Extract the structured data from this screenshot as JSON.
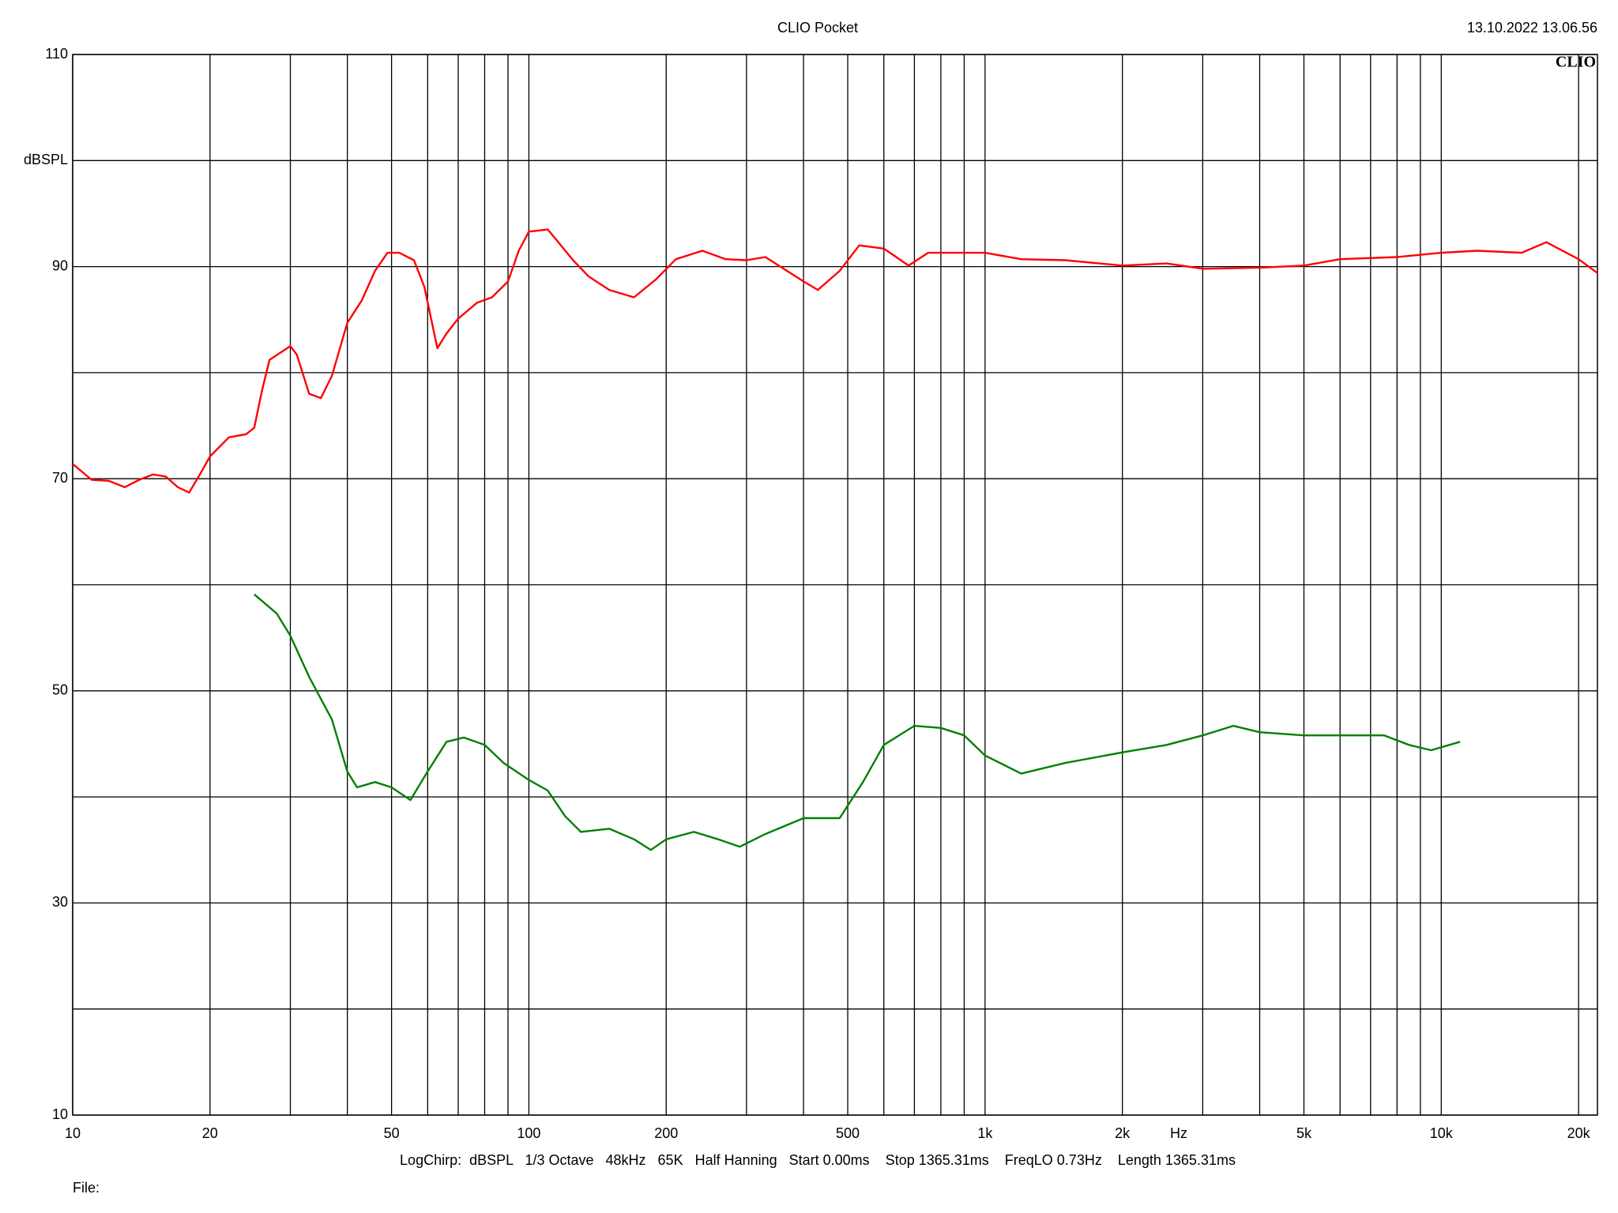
{
  "chart_data": {
    "type": "line",
    "title": "CLIO Pocket",
    "timestamp": "13.10.2022 13.06.56",
    "logo": "CLIO",
    "ylabel": "dBSPL",
    "xlabel": "Hz",
    "footer": "LogChirp:  dBSPL   1/3 Octave   48kHz   65K   Half Hanning   Start 0.00ms    Stop 1365.31ms    FreqLO 0.73Hz    Length 1365.31ms",
    "file_label": "File:",
    "xscale": "log",
    "grid": true,
    "xlim": [
      10,
      22000
    ],
    "ylim": [
      10,
      110
    ],
    "xticks": [
      10,
      20,
      50,
      100,
      200,
      500,
      {
        "value": 1000,
        "label": "1k"
      },
      {
        "value": 2000,
        "label": "2k"
      },
      {
        "value": 5000,
        "label": "5k"
      },
      {
        "value": 10000,
        "label": "10k"
      },
      {
        "value": 20000,
        "label": "20k"
      }
    ],
    "xminor": [
      30,
      40,
      60,
      70,
      80,
      90,
      300,
      400,
      600,
      700,
      800,
      900,
      3000,
      4000,
      6000,
      7000,
      8000,
      9000
    ],
    "yticks": [
      10,
      30,
      50,
      70,
      90,
      110
    ],
    "yminor": [
      20,
      40,
      60,
      80,
      100
    ],
    "series": [
      {
        "color": "#ff0000",
        "x": [
          10,
          11,
          12,
          13,
          14,
          15,
          16,
          17,
          18,
          19,
          20,
          22,
          24,
          25,
          26,
          27,
          30,
          31,
          33,
          35,
          37,
          40,
          43,
          46,
          49,
          52,
          56,
          59,
          63,
          66,
          70,
          77,
          83,
          90,
          95,
          100,
          110,
          115,
          125,
          135,
          150,
          170,
          190,
          210,
          240,
          270,
          300,
          330,
          400,
          430,
          480,
          530,
          600,
          680,
          750,
          1000,
          1200,
          1500,
          2000,
          2500,
          3000,
          4000,
          5000,
          6000,
          8000,
          10000,
          12000,
          15000,
          17000,
          20000,
          22000
        ],
        "values": [
          71.4,
          69.9,
          69.8,
          69.2,
          69.9,
          70.4,
          70.2,
          69.2,
          68.7,
          70.4,
          72.1,
          73.9,
          74.2,
          74.8,
          78.3,
          81.2,
          82.5,
          81.7,
          78.0,
          77.6,
          79.7,
          84.7,
          86.8,
          89.6,
          91.3,
          91.3,
          90.6,
          88.1,
          82.3,
          83.7,
          85.1,
          86.6,
          87.1,
          88.6,
          91.5,
          93.3,
          93.5,
          92.5,
          90.6,
          89.1,
          87.8,
          87.1,
          88.8,
          90.7,
          91.5,
          90.7,
          90.6,
          90.9,
          88.6,
          87.8,
          89.6,
          92.0,
          91.7,
          90.1,
          91.3,
          91.3,
          90.7,
          90.6,
          90.1,
          90.3,
          89.8,
          89.9,
          90.1,
          90.7,
          90.9,
          91.3,
          91.5,
          91.3,
          92.3,
          90.7,
          89.4
        ]
      },
      {
        "color": "#008000",
        "x": [
          25,
          28,
          30,
          33,
          37,
          40,
          42,
          46,
          50,
          55,
          60,
          66,
          72,
          80,
          88,
          100,
          110,
          120,
          130,
          150,
          170,
          185,
          200,
          230,
          260,
          290,
          330,
          400,
          480,
          540,
          600,
          700,
          800,
          900,
          1000,
          1200,
          1500,
          2000,
          2500,
          3000,
          3500,
          4000,
          5000,
          6000,
          7500,
          8500,
          9500,
          11000
        ],
        "values": [
          59.1,
          57.3,
          55.2,
          51.3,
          47.3,
          42.4,
          40.9,
          41.4,
          40.9,
          39.7,
          42.4,
          45.2,
          45.6,
          44.9,
          43.2,
          41.6,
          40.6,
          38.2,
          36.7,
          37.0,
          36.0,
          35.0,
          36.0,
          36.7,
          36.0,
          35.3,
          36.5,
          38.0,
          38.0,
          41.4,
          44.9,
          46.7,
          46.5,
          45.8,
          43.9,
          42.2,
          43.2,
          44.2,
          44.9,
          45.8,
          46.7,
          46.1,
          45.8,
          45.8,
          45.8,
          44.9,
          44.4,
          45.2
        ]
      }
    ]
  }
}
